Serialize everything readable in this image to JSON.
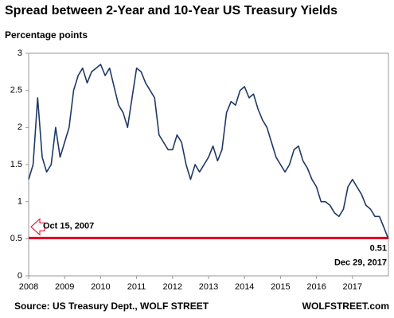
{
  "chart_data": {
    "type": "line",
    "title": "Spread between 2-Year and 10-Year US Treasury Yields",
    "y_label": "Percentage points",
    "source": "Source: US Treasury Dept., WOLF STREET",
    "credit": "WOLFSTREET.com",
    "x": [
      2008,
      2008.125,
      2008.25,
      2008.375,
      2008.5,
      2008.625,
      2008.75,
      2008.875,
      2009,
      2009.125,
      2009.25,
      2009.375,
      2009.5,
      2009.625,
      2009.75,
      2009.875,
      2010,
      2010.125,
      2010.25,
      2010.375,
      2010.5,
      2010.625,
      2010.75,
      2010.875,
      2011,
      2011.125,
      2011.25,
      2011.375,
      2011.5,
      2011.625,
      2011.75,
      2011.875,
      2012,
      2012.125,
      2012.25,
      2012.375,
      2012.5,
      2012.625,
      2012.75,
      2012.875,
      2013,
      2013.125,
      2013.25,
      2013.375,
      2013.5,
      2013.625,
      2013.75,
      2013.875,
      2014,
      2014.125,
      2014.25,
      2014.375,
      2014.5,
      2014.625,
      2014.75,
      2014.875,
      2015,
      2015.125,
      2015.25,
      2015.375,
      2015.5,
      2015.625,
      2015.75,
      2015.875,
      2016,
      2016.125,
      2016.25,
      2016.375,
      2016.5,
      2016.625,
      2016.75,
      2016.875,
      2017,
      2017.125,
      2017.25,
      2017.375,
      2017.5,
      2017.625,
      2017.75,
      2017.875,
      2017.99
    ],
    "series": [
      {
        "color": "#1f3864",
        "values": [
          1.3,
          1.5,
          2.4,
          1.6,
          1.4,
          1.5,
          2.0,
          1.6,
          1.8,
          2.0,
          2.5,
          2.7,
          2.8,
          2.6,
          2.75,
          2.8,
          2.85,
          2.7,
          2.8,
          2.55,
          2.3,
          2.2,
          2.0,
          2.4,
          2.8,
          2.75,
          2.6,
          2.5,
          2.4,
          1.9,
          1.8,
          1.7,
          1.7,
          1.9,
          1.8,
          1.5,
          1.3,
          1.5,
          1.4,
          1.5,
          1.6,
          1.75,
          1.55,
          1.7,
          2.2,
          2.35,
          2.3,
          2.5,
          2.55,
          2.4,
          2.45,
          2.25,
          2.1,
          2.0,
          1.8,
          1.6,
          1.5,
          1.4,
          1.5,
          1.7,
          1.75,
          1.55,
          1.45,
          1.3,
          1.2,
          1.0,
          1.0,
          0.95,
          0.85,
          0.8,
          0.9,
          1.2,
          1.3,
          1.2,
          1.1,
          0.95,
          0.9,
          0.8,
          0.8,
          0.65,
          0.51
        ]
      }
    ],
    "hline": 0.51,
    "hline_color": "#e0001b",
    "annotations": [
      "Oct 15, 2007",
      "Dec 29, 2017"
    ],
    "xlim": [
      2008,
      2018
    ],
    "xticks": [
      2008,
      2009,
      2010,
      2011,
      2012,
      2013,
      2014,
      2015,
      2016,
      2017
    ],
    "ylim": [
      0,
      3
    ],
    "yticks": [
      0,
      0.5,
      1,
      1.5,
      2,
      2.5,
      3
    ],
    "grid": false
  }
}
